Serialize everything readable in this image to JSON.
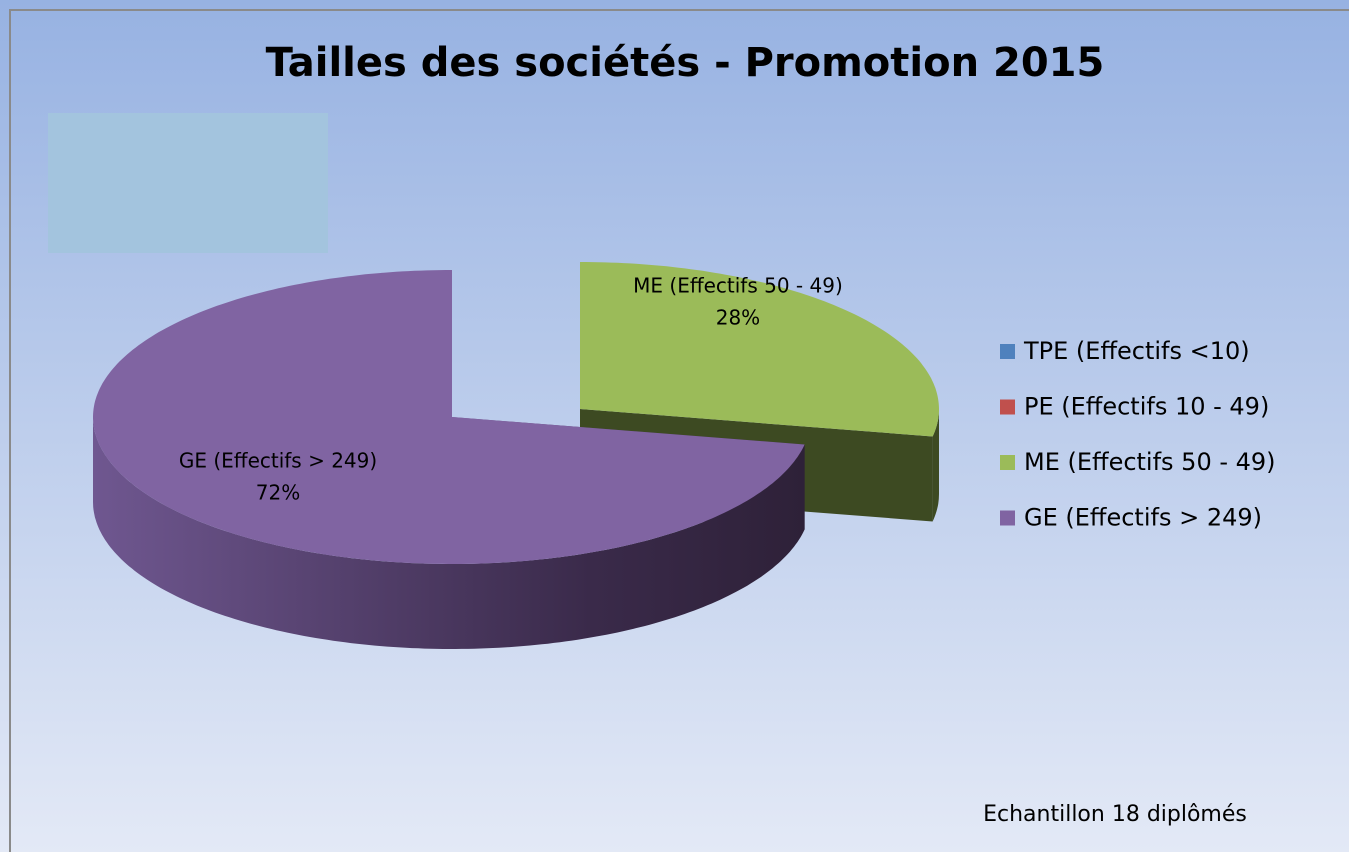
{
  "chart_data": {
    "type": "pie",
    "title": "Tailles des sociétés - Promotion 2015",
    "categories": [
      "TPE (Effectifs <10)",
      "PE (Effectifs 10 - 49)",
      "ME (Effectifs 50 - 49)",
      "GE (Effectifs > 249)"
    ],
    "values": [
      0,
      0,
      28,
      72
    ],
    "value_labels": [
      null,
      null,
      "28%",
      "72%"
    ],
    "colors": [
      "#4f81bd",
      "#c0504d",
      "#9bbb59",
      "#8064a2"
    ],
    "exploded": "ME (Effectifs 50 - 49)",
    "legend": "right",
    "annotation": "Echantillon 18 diplômés"
  }
}
